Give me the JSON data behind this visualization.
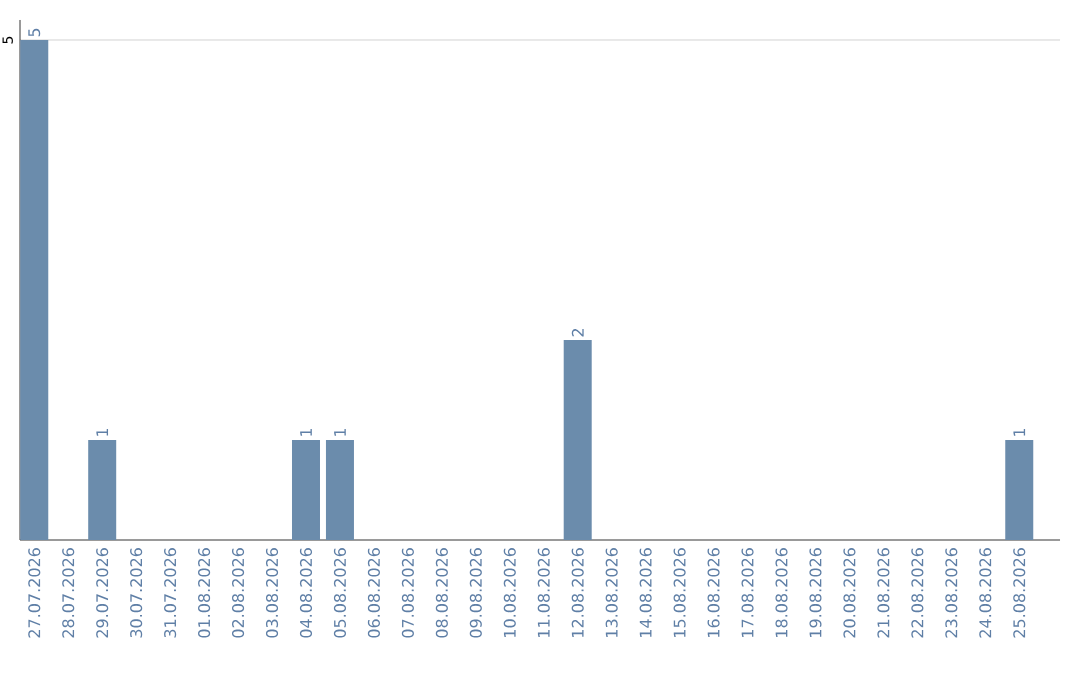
{
  "chart_data": {
    "type": "bar",
    "categories": [
      "27.07.2026",
      "28.07.2026",
      "29.07.2026",
      "30.07.2026",
      "31.07.2026",
      "01.08.2026",
      "02.08.2026",
      "03.08.2026",
      "04.08.2026",
      "05.08.2026",
      "06.08.2026",
      "07.08.2026",
      "08.08.2026",
      "09.08.2026",
      "10.08.2026",
      "11.08.2026",
      "12.08.2026",
      "13.08.2026",
      "14.08.2026",
      "15.08.2026",
      "16.08.2026",
      "17.08.2026",
      "18.08.2026",
      "19.08.2026",
      "20.08.2026",
      "21.08.2026",
      "22.08.2026",
      "23.08.2026",
      "24.08.2026",
      "25.08.2026"
    ],
    "values": [
      5,
      null,
      1,
      null,
      null,
      null,
      null,
      null,
      1,
      1,
      null,
      null,
      null,
      null,
      null,
      null,
      2,
      null,
      null,
      null,
      null,
      null,
      null,
      null,
      null,
      null,
      null,
      null,
      null,
      1
    ],
    "color": "#6b8cac",
    "ylim": [
      0,
      5.2
    ],
    "yticks": [
      5
    ],
    "grid": "y",
    "data_labels": true
  }
}
